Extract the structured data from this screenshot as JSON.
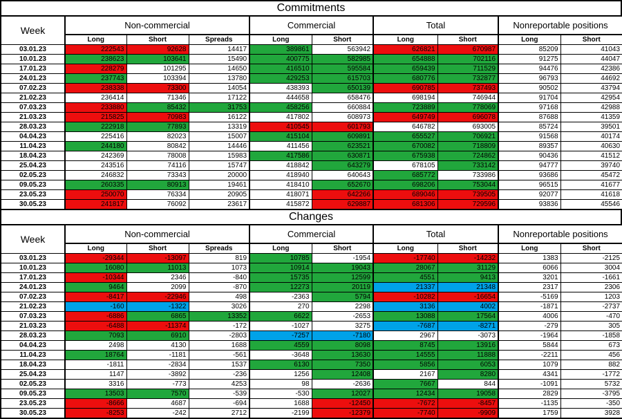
{
  "header": {
    "week_label": "Week",
    "groups": [
      {
        "label": "Non-commercial",
        "cols": [
          "Long",
          "Short",
          "Spreads"
        ]
      },
      {
        "label": "Commercial",
        "cols": [
          "Long",
          "Short"
        ]
      },
      {
        "label": "Total",
        "cols": [
          "Long",
          "Short"
        ]
      },
      {
        "label": "Nonreportable positions",
        "cols": [
          "Long",
          "Short"
        ]
      }
    ]
  },
  "colors": {
    "w": "#FFFFFF",
    "r": "#ED0E0E",
    "g": "#21A73C",
    "b": "#00A2E8"
  },
  "sections": [
    {
      "title": "Commitments",
      "rows": [
        {
          "week": "03.01.23",
          "v": [
            222543,
            92628,
            14417,
            389861,
            563942,
            626821,
            670987,
            85209,
            41043
          ],
          "bg": [
            "r",
            "r",
            "w",
            "g",
            "w",
            "r",
            "r",
            "w",
            "w"
          ]
        },
        {
          "week": "10.01.23",
          "v": [
            238623,
            103641,
            15490,
            400775,
            582985,
            654888,
            702116,
            91275,
            44047
          ],
          "bg": [
            "g",
            "g",
            "w",
            "g",
            "g",
            "g",
            "g",
            "w",
            "w"
          ]
        },
        {
          "week": "17.01.23",
          "v": [
            228279,
            101295,
            14650,
            416510,
            595584,
            659439,
            711529,
            94476,
            42386
          ],
          "bg": [
            "r",
            "w",
            "w",
            "g",
            "g",
            "g",
            "g",
            "w",
            "w"
          ]
        },
        {
          "week": "24.01.23",
          "v": [
            237743,
            103394,
            13780,
            429253,
            615703,
            680776,
            732877,
            96793,
            44692
          ],
          "bg": [
            "g",
            "w",
            "w",
            "g",
            "g",
            "g",
            "g",
            "w",
            "w"
          ]
        },
        {
          "week": "07.02.23",
          "v": [
            238338,
            73300,
            14054,
            438393,
            650139,
            690785,
            737493,
            90502,
            43794
          ],
          "bg": [
            "r",
            "r",
            "w",
            "w",
            "g",
            "r",
            "r",
            "w",
            "w"
          ]
        },
        {
          "week": "21.02.23",
          "v": [
            236414,
            71346,
            17122,
            444658,
            658476,
            698194,
            746944,
            91704,
            42954
          ],
          "bg": [
            "w",
            "w",
            "w",
            "w",
            "w",
            "w",
            "w",
            "w",
            "w"
          ]
        },
        {
          "week": "07.03.23",
          "v": [
            233880,
            85432,
            31753,
            458256,
            660884,
            723889,
            778069,
            97168,
            42988
          ],
          "bg": [
            "r",
            "g",
            "g",
            "g",
            "w",
            "g",
            "g",
            "w",
            "w"
          ]
        },
        {
          "week": "21.03.23",
          "v": [
            215825,
            70983,
            16122,
            417802,
            608973,
            649749,
            696078,
            87688,
            41359
          ],
          "bg": [
            "r",
            "r",
            "w",
            "w",
            "w",
            "r",
            "r",
            "w",
            "w"
          ]
        },
        {
          "week": "28.03.23",
          "v": [
            222918,
            77893,
            13319,
            410545,
            601793,
            646782,
            693005,
            85724,
            39501
          ],
          "bg": [
            "g",
            "g",
            "w",
            "r",
            "r",
            "w",
            "w",
            "w",
            "w"
          ]
        },
        {
          "week": "04.04.23",
          "v": [
            225416,
            82023,
            15007,
            415104,
            609891,
            655527,
            706921,
            91568,
            40174
          ],
          "bg": [
            "w",
            "w",
            "w",
            "g",
            "g",
            "g",
            "g",
            "w",
            "w"
          ]
        },
        {
          "week": "11.04.23",
          "v": [
            244180,
            80842,
            14446,
            411456,
            623521,
            670082,
            718809,
            89357,
            40630
          ],
          "bg": [
            "g",
            "w",
            "w",
            "w",
            "g",
            "g",
            "g",
            "w",
            "w"
          ]
        },
        {
          "week": "18.04.23",
          "v": [
            242369,
            78008,
            15983,
            417586,
            630871,
            675938,
            724862,
            90436,
            41512
          ],
          "bg": [
            "w",
            "w",
            "w",
            "g",
            "g",
            "g",
            "g",
            "w",
            "w"
          ]
        },
        {
          "week": "25.04.23",
          "v": [
            243516,
            74116,
            15747,
            418842,
            643279,
            678105,
            733142,
            94777,
            39740
          ],
          "bg": [
            "w",
            "w",
            "w",
            "w",
            "g",
            "w",
            "g",
            "w",
            "w"
          ]
        },
        {
          "week": "02.05.23",
          "v": [
            246832,
            73343,
            20000,
            418940,
            640643,
            685772,
            733986,
            93686,
            45472
          ],
          "bg": [
            "w",
            "w",
            "w",
            "w",
            "w",
            "g",
            "w",
            "w",
            "w"
          ]
        },
        {
          "week": "09.05.23",
          "v": [
            260335,
            80913,
            19461,
            418410,
            652670,
            698206,
            753044,
            96515,
            41677
          ],
          "bg": [
            "g",
            "g",
            "w",
            "w",
            "g",
            "g",
            "g",
            "w",
            "w"
          ]
        },
        {
          "week": "23.05.23",
          "v": [
            250070,
            76334,
            20905,
            418071,
            642266,
            689046,
            739505,
            92077,
            41618
          ],
          "bg": [
            "r",
            "w",
            "w",
            "w",
            "r",
            "r",
            "r",
            "w",
            "w"
          ]
        },
        {
          "week": "30.05.23",
          "v": [
            241817,
            76092,
            23617,
            415872,
            629887,
            681306,
            729596,
            93836,
            45546
          ],
          "bg": [
            "r",
            "w",
            "w",
            "w",
            "r",
            "r",
            "r",
            "w",
            "w"
          ]
        }
      ]
    },
    {
      "title": "Changes",
      "rows": [
        {
          "week": "03.01.23",
          "v": [
            -29344,
            -13097,
            819,
            10785,
            -1954,
            -17740,
            -14232,
            1383,
            -2125
          ],
          "bg": [
            "r",
            "r",
            "w",
            "g",
            "w",
            "r",
            "r",
            "w",
            "w"
          ]
        },
        {
          "week": "10.01.23",
          "v": [
            16080,
            11013,
            1073,
            10914,
            19043,
            28067,
            31129,
            6066,
            3004
          ],
          "bg": [
            "g",
            "g",
            "w",
            "g",
            "g",
            "g",
            "g",
            "w",
            "w"
          ]
        },
        {
          "week": "17.01.23",
          "v": [
            -10344,
            2346,
            -840,
            15735,
            12599,
            4551,
            9413,
            3201,
            -1661
          ],
          "bg": [
            "r",
            "w",
            "w",
            "g",
            "g",
            "g",
            "g",
            "w",
            "w"
          ]
        },
        {
          "week": "24.01.23",
          "v": [
            9464,
            2099,
            -870,
            12273,
            20119,
            21337,
            21348,
            2317,
            2306
          ],
          "bg": [
            "g",
            "w",
            "w",
            "g",
            "g",
            "b",
            "b",
            "w",
            "w"
          ]
        },
        {
          "week": "07.02.23",
          "v": [
            -8417,
            -22946,
            498,
            -2363,
            5794,
            -10282,
            -16654,
            -5169,
            1203
          ],
          "bg": [
            "r",
            "r",
            "w",
            "w",
            "g",
            "r",
            "r",
            "w",
            "w"
          ]
        },
        {
          "week": "21.02.23",
          "v": [
            -160,
            -1322,
            3026,
            270,
            2298,
            3136,
            4002,
            -1871,
            -2737
          ],
          "bg": [
            "b",
            "b",
            "w",
            "w",
            "w",
            "b",
            "b",
            "w",
            "w"
          ]
        },
        {
          "week": "07.03.23",
          "v": [
            -6886,
            6865,
            13352,
            6622,
            -2653,
            13088,
            17564,
            4006,
            -470
          ],
          "bg": [
            "r",
            "g",
            "g",
            "g",
            "w",
            "g",
            "g",
            "w",
            "w"
          ]
        },
        {
          "week": "21.03.23",
          "v": [
            -6488,
            -11374,
            -172,
            -1027,
            3275,
            -7687,
            -8271,
            -279,
            305
          ],
          "bg": [
            "r",
            "r",
            "w",
            "w",
            "w",
            "b",
            "b",
            "w",
            "w"
          ]
        },
        {
          "week": "28.03.23",
          "v": [
            7093,
            6910,
            -2803,
            -7257,
            -7180,
            2967,
            -3073,
            -1964,
            -1858
          ],
          "bg": [
            "g",
            "g",
            "w",
            "b",
            "b",
            "w",
            "w",
            "w",
            "w"
          ]
        },
        {
          "week": "04.04.23",
          "v": [
            2498,
            4130,
            1688,
            4559,
            8098,
            8745,
            13916,
            5844,
            673
          ],
          "bg": [
            "w",
            "w",
            "w",
            "g",
            "g",
            "g",
            "g",
            "w",
            "w"
          ]
        },
        {
          "week": "11.04.23",
          "v": [
            18764,
            -1181,
            -561,
            -3648,
            13630,
            14555,
            11888,
            -2211,
            456
          ],
          "bg": [
            "g",
            "w",
            "w",
            "w",
            "g",
            "g",
            "g",
            "w",
            "w"
          ]
        },
        {
          "week": "18.04.23",
          "v": [
            -1811,
            -2834,
            1537,
            6130,
            7350,
            5856,
            6053,
            1079,
            882
          ],
          "bg": [
            "w",
            "w",
            "w",
            "g",
            "g",
            "g",
            "g",
            "w",
            "w"
          ]
        },
        {
          "week": "25.04.23",
          "v": [
            1147,
            -3892,
            -236,
            1256,
            12408,
            2167,
            8280,
            4341,
            -1772
          ],
          "bg": [
            "w",
            "w",
            "w",
            "w",
            "g",
            "w",
            "g",
            "w",
            "w"
          ]
        },
        {
          "week": "02.05.23",
          "v": [
            3316,
            -773,
            4253,
            98,
            -2636,
            7667,
            844,
            -1091,
            5732
          ],
          "bg": [
            "w",
            "w",
            "w",
            "w",
            "w",
            "g",
            "w",
            "w",
            "w"
          ]
        },
        {
          "week": "09.05.23",
          "v": [
            13503,
            7570,
            -539,
            -530,
            12027,
            12434,
            19058,
            2829,
            -3795
          ],
          "bg": [
            "g",
            "g",
            "w",
            "w",
            "g",
            "g",
            "g",
            "w",
            "w"
          ]
        },
        {
          "week": "23.05.23",
          "v": [
            -8666,
            4687,
            -694,
            1688,
            -12450,
            -7672,
            -8457,
            -1135,
            -350
          ],
          "bg": [
            "r",
            "w",
            "w",
            "w",
            "r",
            "r",
            "r",
            "w",
            "w"
          ]
        },
        {
          "week": "30.05.23",
          "v": [
            -8253,
            -242,
            2712,
            -2199,
            -12379,
            -7740,
            -9909,
            1759,
            3928
          ],
          "bg": [
            "r",
            "w",
            "w",
            "w",
            "r",
            "r",
            "r",
            "w",
            "w"
          ]
        }
      ]
    }
  ]
}
